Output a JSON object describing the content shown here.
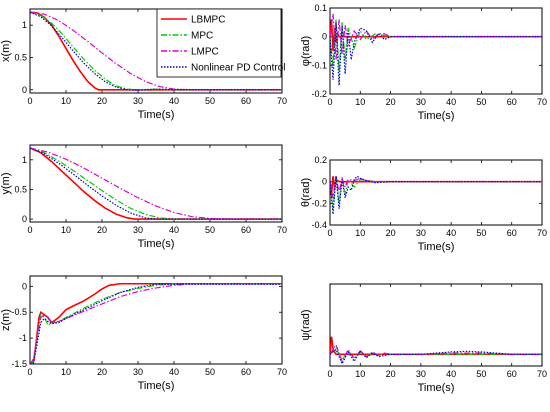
{
  "legend": {
    "entries": [
      {
        "label": "LBMPC",
        "color": "#ff0000",
        "dash": "solid"
      },
      {
        "label": "MPC",
        "color": "#00cc00",
        "dash": "dashdot"
      },
      {
        "label": "LMPC",
        "color": "#dd00dd",
        "dash": "dashdot"
      },
      {
        "label": "Nonlinear PD Control",
        "color": "#0000cc",
        "dash": "dotted"
      }
    ]
  },
  "chart_data": [
    {
      "type": "line",
      "id": "x",
      "ylabel": "x(m)",
      "xlabel": "Time(s)",
      "xlim": [
        0,
        70
      ],
      "ylim": [
        -0.05,
        1.25
      ],
      "xticks": [
        0,
        10,
        20,
        30,
        40,
        50,
        60,
        70
      ],
      "yticks": [
        0,
        0.5,
        1
      ],
      "ytick_labels": [
        "0",
        "0.5",
        "1"
      ],
      "series": [
        {
          "name": "LBMPC",
          "x": [
            0,
            2,
            4,
            6,
            8,
            10,
            12,
            14,
            16,
            18,
            19,
            20,
            25,
            30,
            40,
            70
          ],
          "y": [
            1.2,
            1.19,
            1.12,
            1.0,
            0.83,
            0.64,
            0.45,
            0.28,
            0.13,
            0.03,
            0.0,
            0.0,
            0.0,
            0.0,
            0.0,
            0.0
          ]
        },
        {
          "name": "MPC",
          "x": [
            0,
            3,
            6,
            9,
            12,
            15,
            18,
            21,
            24,
            27,
            30,
            35,
            40,
            70
          ],
          "y": [
            1.2,
            1.15,
            1.03,
            0.86,
            0.66,
            0.47,
            0.3,
            0.16,
            0.06,
            0.01,
            0.0,
            0.01,
            0.0,
            0.0
          ]
        },
        {
          "name": "LMPC",
          "x": [
            0,
            4,
            8,
            12,
            16,
            20,
            24,
            28,
            32,
            36,
            40,
            45,
            50,
            70
          ],
          "y": [
            1.2,
            1.17,
            1.07,
            0.92,
            0.75,
            0.57,
            0.4,
            0.25,
            0.13,
            0.05,
            0.01,
            0.0,
            0.0,
            0.0
          ]
        },
        {
          "name": "Nonlinear PD Control",
          "x": [
            0,
            3,
            6,
            9,
            12,
            15,
            18,
            21,
            24,
            27,
            30,
            33,
            36,
            40,
            70
          ],
          "y": [
            1.2,
            1.13,
            0.99,
            0.8,
            0.6,
            0.41,
            0.25,
            0.12,
            0.04,
            0.0,
            -0.01,
            0.0,
            0.01,
            0.0,
            0.0
          ]
        }
      ]
    },
    {
      "type": "line",
      "id": "phi",
      "ylabel": "φ(rad)",
      "xlabel": "Time(s)",
      "xlim": [
        0,
        70
      ],
      "ylim": [
        -0.2,
        0.1
      ],
      "xticks": [
        0,
        10,
        20,
        30,
        40,
        50,
        60,
        70
      ],
      "yticks": [
        -0.2,
        -0.1,
        0,
        0.1
      ],
      "ytick_labels": [
        "-0.2",
        "-0.1",
        "0",
        "0.1"
      ],
      "series": [
        {
          "name": "LBMPC",
          "x": [
            0,
            0.5,
            1,
            1.5,
            2,
            2.5,
            3,
            4,
            6,
            70
          ],
          "y": [
            0,
            0.06,
            -0.05,
            0.03,
            -0.02,
            0.01,
            0,
            0,
            0,
            0
          ]
        },
        {
          "name": "MPC",
          "x": [
            0,
            1,
            2,
            3,
            4,
            5,
            6,
            8,
            10,
            12,
            15,
            20,
            70
          ],
          "y": [
            0,
            -0.1,
            0.06,
            -0.12,
            0.05,
            -0.08,
            0.03,
            -0.04,
            0.02,
            -0.01,
            0.01,
            0,
            0
          ]
        },
        {
          "name": "LMPC",
          "x": [
            0,
            1,
            2,
            3,
            4,
            5,
            6,
            8,
            10,
            12,
            14,
            16,
            18,
            20,
            25,
            70
          ],
          "y": [
            0,
            0.08,
            -0.08,
            0.06,
            -0.06,
            0.04,
            -0.03,
            0.02,
            -0.01,
            0.02,
            -0.01,
            0.01,
            0.01,
            0,
            0,
            0
          ]
        },
        {
          "name": "Nonlinear PD Control",
          "x": [
            0,
            1,
            2,
            3,
            4,
            5,
            6,
            7,
            8,
            10,
            12,
            14,
            16,
            18,
            20,
            25,
            70
          ],
          "y": [
            0,
            -0.15,
            0.05,
            -0.17,
            0.04,
            -0.13,
            0.02,
            -0.08,
            -0.02,
            0.03,
            0.02,
            -0.02,
            0.01,
            -0.01,
            0,
            0,
            0
          ]
        }
      ]
    },
    {
      "type": "line",
      "id": "y",
      "ylabel": "y(m)",
      "xlabel": "Time(s)",
      "xlim": [
        0,
        70
      ],
      "ylim": [
        -0.05,
        1.25
      ],
      "xticks": [
        0,
        10,
        20,
        30,
        40,
        50,
        60,
        70
      ],
      "yticks": [
        0,
        0.5,
        1
      ],
      "ytick_labels": [
        "0",
        "0.5",
        "1"
      ],
      "series": [
        {
          "name": "LBMPC",
          "x": [
            0,
            3,
            6,
            9,
            12,
            15,
            18,
            21,
            24,
            27,
            29,
            30,
            35,
            70
          ],
          "y": [
            1.2,
            1.12,
            0.97,
            0.8,
            0.63,
            0.46,
            0.31,
            0.18,
            0.08,
            0.02,
            0.0,
            0.0,
            0.0,
            0.0
          ]
        },
        {
          "name": "MPC",
          "x": [
            0,
            4,
            8,
            12,
            16,
            20,
            24,
            28,
            32,
            36,
            40,
            45,
            70
          ],
          "y": [
            1.2,
            1.12,
            0.98,
            0.82,
            0.65,
            0.48,
            0.32,
            0.18,
            0.08,
            0.02,
            0.0,
            0.0,
            0.0
          ]
        },
        {
          "name": "LMPC",
          "x": [
            0,
            5,
            10,
            15,
            20,
            25,
            30,
            35,
            40,
            45,
            50,
            55,
            70
          ],
          "y": [
            1.2,
            1.13,
            1.01,
            0.86,
            0.69,
            0.52,
            0.36,
            0.22,
            0.11,
            0.04,
            0.01,
            0.0,
            0.0
          ]
        },
        {
          "name": "Nonlinear PD Control",
          "x": [
            0,
            4,
            8,
            12,
            16,
            20,
            24,
            28,
            32,
            35,
            40,
            70
          ],
          "y": [
            1.2,
            1.1,
            0.94,
            0.76,
            0.57,
            0.39,
            0.23,
            0.1,
            0.02,
            0.0,
            0.0,
            0.0
          ]
        }
      ]
    },
    {
      "type": "line",
      "id": "theta",
      "ylabel": "θ(rad)",
      "xlabel": "Time(s)",
      "xlim": [
        0,
        70
      ],
      "ylim": [
        -0.4,
        0.2
      ],
      "xticks": [
        0,
        10,
        20,
        30,
        40,
        50,
        60,
        70
      ],
      "yticks": [
        -0.4,
        -0.2,
        0,
        0.2
      ],
      "ytick_labels": [
        "-0.4",
        "-0.2",
        "0",
        "0.2"
      ],
      "series": [
        {
          "name": "LBMPC",
          "x": [
            0,
            0.5,
            1,
            1.5,
            2,
            3,
            4,
            70
          ],
          "y": [
            0,
            -0.12,
            0.05,
            -0.05,
            0.02,
            0,
            0,
            0
          ]
        },
        {
          "name": "MPC",
          "x": [
            0,
            1,
            2,
            3,
            4,
            5,
            6,
            8,
            10,
            12,
            15,
            18,
            20,
            70
          ],
          "y": [
            0,
            -0.25,
            0.05,
            -0.2,
            0.03,
            -0.12,
            0.02,
            -0.05,
            0.02,
            0.01,
            0,
            0,
            0,
            0
          ]
        },
        {
          "name": "LMPC",
          "x": [
            0,
            1,
            2,
            3,
            4,
            5,
            6,
            8,
            10,
            12,
            15,
            20,
            70
          ],
          "y": [
            0,
            -0.15,
            0.05,
            -0.1,
            0.03,
            -0.05,
            0.02,
            0.01,
            0.03,
            0.01,
            0,
            0,
            0
          ]
        },
        {
          "name": "Nonlinear PD Control",
          "x": [
            0,
            1,
            2,
            3,
            4,
            5,
            6,
            7,
            8,
            9,
            10,
            12,
            15,
            20,
            70
          ],
          "y": [
            0,
            -0.3,
            0.05,
            -0.25,
            0.02,
            -0.15,
            -0.05,
            -0.08,
            0.02,
            0.05,
            0.03,
            0.01,
            -0.01,
            0,
            0
          ]
        }
      ]
    },
    {
      "type": "line",
      "id": "z",
      "ylabel": "z(m)",
      "xlabel": "Time(s)",
      "xlim": [
        0,
        70
      ],
      "ylim": [
        -1.5,
        0.2
      ],
      "xticks": [
        0,
        10,
        20,
        30,
        40,
        50,
        60,
        70
      ],
      "yticks": [
        -1.5,
        -1,
        -0.5,
        0
      ],
      "ytick_labels": [
        "-1.5",
        "-1",
        "-0.5",
        "0"
      ],
      "series": [
        {
          "name": "LBMPC",
          "x": [
            0,
            1,
            1.5,
            2,
            2.5,
            3,
            4,
            5,
            6,
            8,
            10,
            12,
            15,
            18,
            20,
            22,
            25,
            70
          ],
          "y": [
            -1.5,
            -1.45,
            -1.2,
            -0.9,
            -0.6,
            -0.5,
            -0.55,
            -0.6,
            -0.7,
            -0.6,
            -0.45,
            -0.38,
            -0.28,
            -0.15,
            -0.05,
            0.02,
            0.05,
            0.05
          ]
        },
        {
          "name": "MPC",
          "x": [
            0,
            1,
            2,
            3,
            4,
            5,
            6,
            8,
            10,
            15,
            20,
            25,
            30,
            35,
            40,
            70
          ],
          "y": [
            -1.5,
            -1.45,
            -0.95,
            -0.55,
            -0.6,
            -0.75,
            -0.72,
            -0.68,
            -0.6,
            -0.42,
            -0.25,
            -0.12,
            -0.04,
            0.02,
            0.05,
            0.05
          ]
        },
        {
          "name": "LMPC",
          "x": [
            0,
            1,
            2,
            3,
            4,
            5,
            6,
            8,
            10,
            15,
            20,
            25,
            30,
            35,
            40,
            45,
            70
          ],
          "y": [
            -1.5,
            -1.4,
            -1.0,
            -0.6,
            -0.55,
            -0.62,
            -0.7,
            -0.68,
            -0.62,
            -0.48,
            -0.34,
            -0.2,
            -0.1,
            -0.03,
            0.02,
            0.05,
            0.05
          ]
        },
        {
          "name": "Nonlinear PD Control",
          "x": [
            0,
            1,
            2,
            3,
            4,
            5,
            6,
            8,
            10,
            15,
            20,
            25,
            30,
            35,
            70
          ],
          "y": [
            -1.5,
            -1.48,
            -1.1,
            -0.7,
            -0.62,
            -0.68,
            -0.72,
            -0.7,
            -0.62,
            -0.45,
            -0.28,
            -0.12,
            -0.02,
            0.04,
            0.04
          ]
        }
      ]
    },
    {
      "type": "line",
      "id": "psi",
      "ylabel": "ψ(rad)",
      "xlabel": "Time(s)",
      "xlim": [
        0,
        70
      ],
      "ylim": [
        -0.1,
        0.6
      ],
      "xticks": [
        0,
        10,
        20,
        30,
        40,
        50,
        60,
        70
      ],
      "yticks": [],
      "ytick_labels": [],
      "series": [
        {
          "name": "LBMPC",
          "x": [
            0,
            0.5,
            1,
            1.5,
            2,
            3,
            70
          ],
          "y": [
            0,
            0.15,
            0.05,
            0.02,
            0,
            0,
            0
          ]
        },
        {
          "name": "MPC",
          "x": [
            0,
            2,
            4,
            6,
            8,
            10,
            12,
            14,
            16,
            18,
            20,
            25,
            30,
            40,
            50,
            60,
            70
          ],
          "y": [
            0,
            0.05,
            -0.05,
            0.03,
            -0.03,
            0.02,
            -0.02,
            0.01,
            -0.01,
            0.01,
            0,
            0,
            0,
            0,
            0,
            0,
            0
          ]
        },
        {
          "name": "LMPC",
          "x": [
            0,
            2,
            4,
            6,
            8,
            10,
            12,
            14,
            16,
            18,
            20,
            30,
            40,
            45,
            50,
            60,
            70
          ],
          "y": [
            0,
            0.08,
            -0.06,
            0.04,
            -0.04,
            0.03,
            -0.02,
            0.02,
            -0.01,
            0.01,
            0,
            0,
            0.01,
            0.01,
            0.01,
            0,
            0
          ]
        },
        {
          "name": "Nonlinear PD Control",
          "x": [
            0,
            2,
            4,
            6,
            8,
            10,
            12,
            14,
            16,
            20,
            25,
            30,
            35,
            40,
            45,
            50,
            55,
            60,
            70
          ],
          "y": [
            0,
            0.04,
            -0.08,
            0.02,
            -0.06,
            0.03,
            -0.03,
            0.01,
            -0.02,
            0,
            0,
            0,
            0.01,
            0.02,
            0.025,
            0.02,
            0.01,
            0,
            0
          ]
        }
      ]
    }
  ]
}
